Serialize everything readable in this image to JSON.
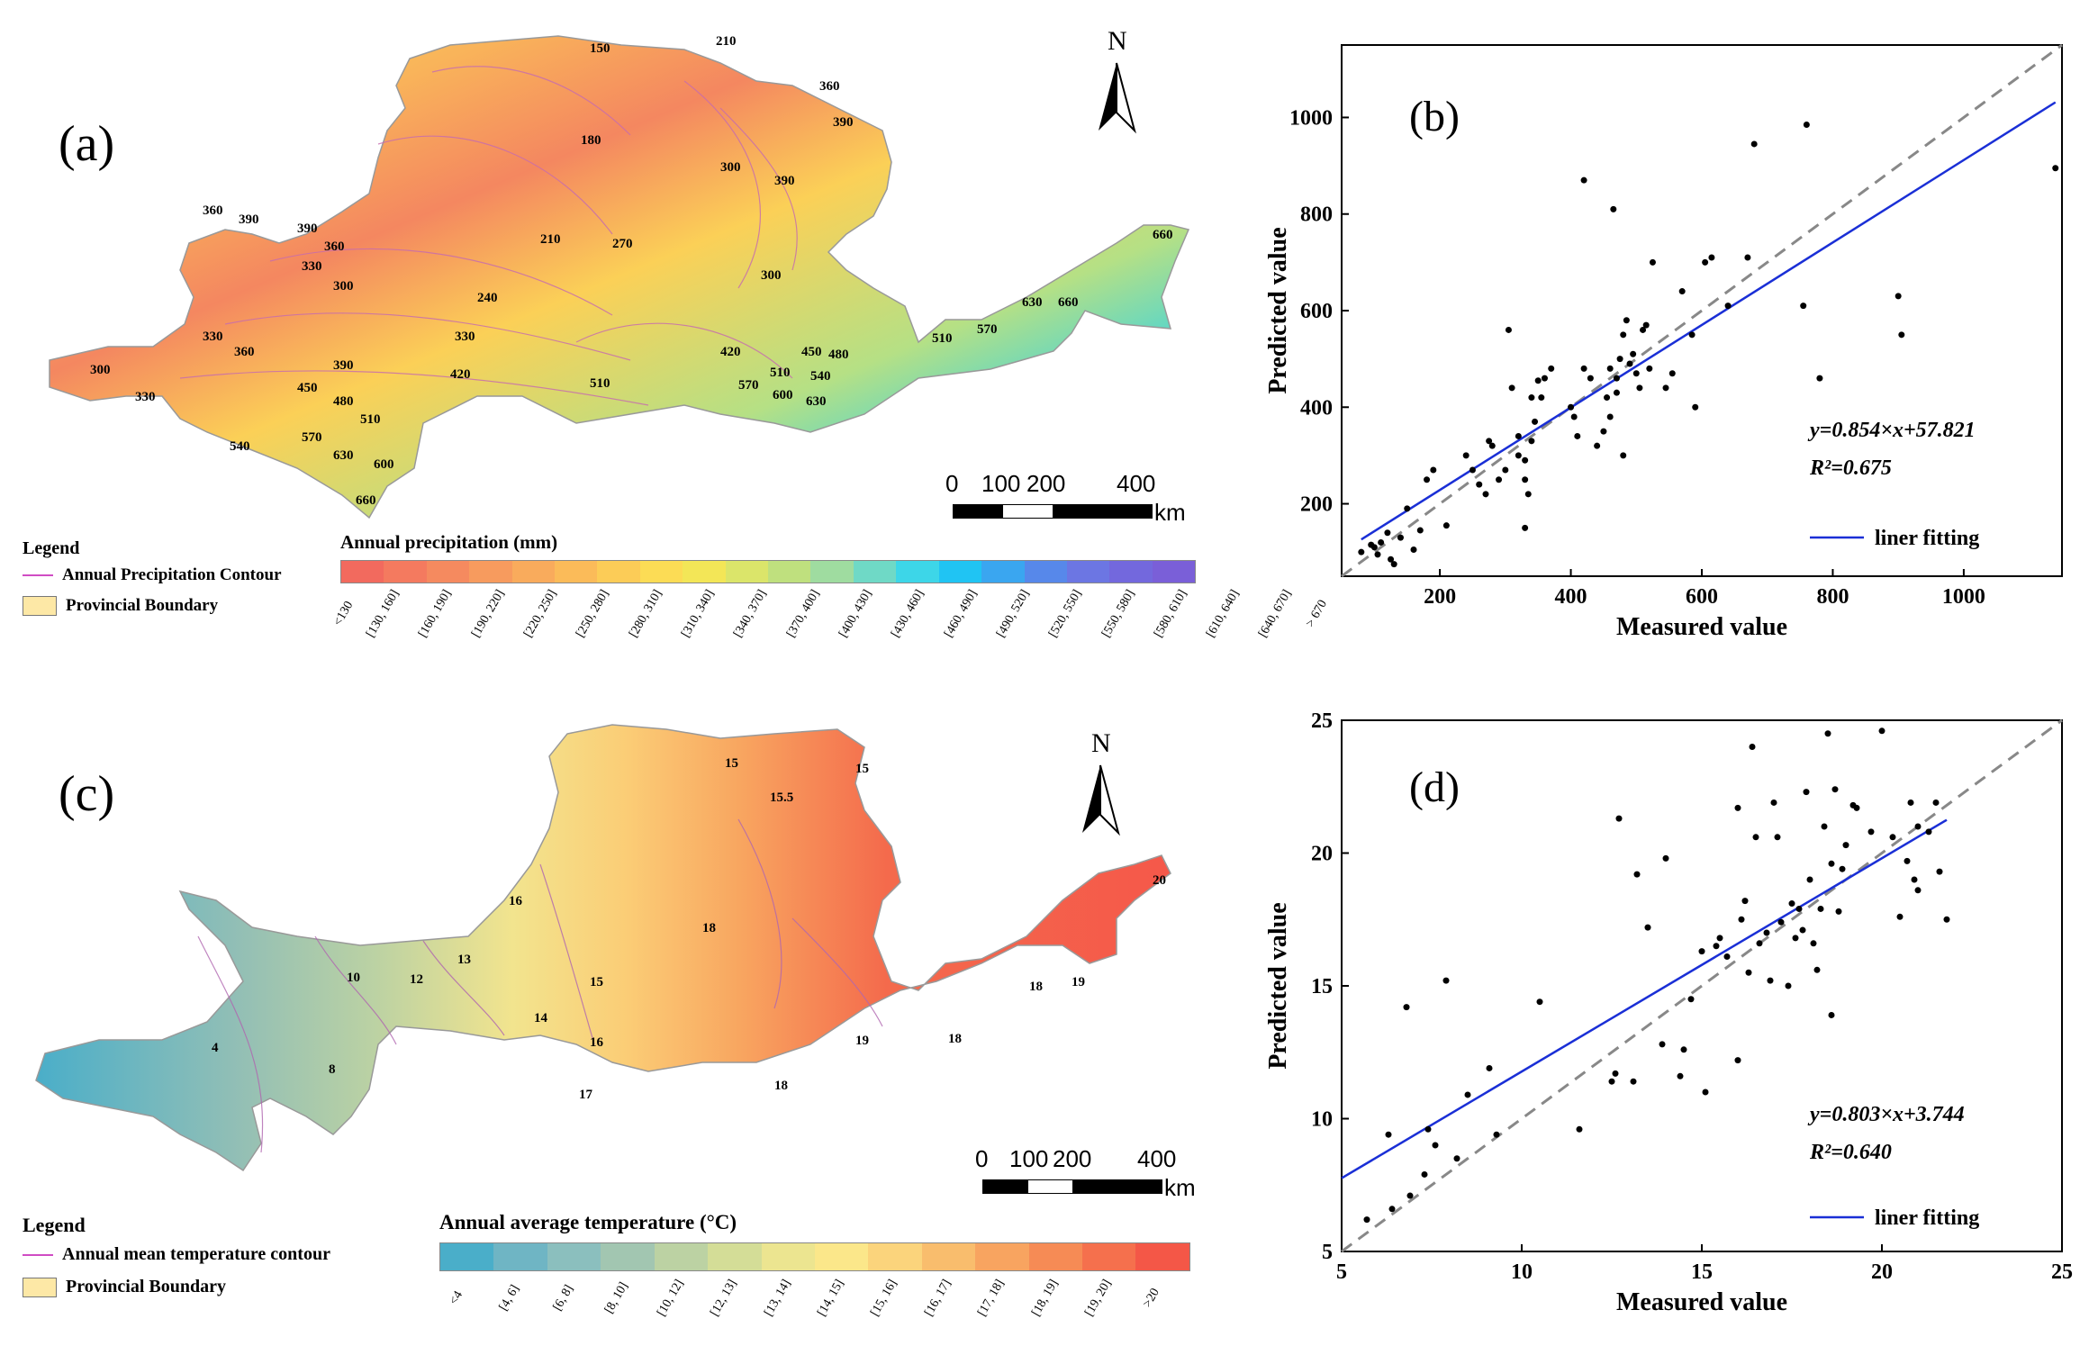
{
  "panel_a": {
    "label": "(a)",
    "north": "N",
    "legend_title": "Legend",
    "legend_line": "Annual Precipitation Contour",
    "legend_box": "Provincial Boundary",
    "colorbar_title": "Annual precipitation (mm)",
    "colorbar_ticks": [
      "<130",
      "[130, 160]",
      "[160, 190]",
      "[190, 220]",
      "[220, 250]",
      "[250, 280]",
      "[280, 310]",
      "[310, 340]",
      "[340, 370]",
      "[370, 400]",
      "[400, 430]",
      "[430, 460]",
      "[460, 490]",
      "[490, 520]",
      "[520, 550]",
      "[550, 580]",
      "[580, 610]",
      "[610, 640]",
      "[640, 670]",
      "> 670"
    ],
    "colorbar_colors": [
      "#f26a5e",
      "#f47a5f",
      "#f58a5f",
      "#f79b5e",
      "#f9ab5c",
      "#fbbb59",
      "#fccc57",
      "#fcdc55",
      "#f3e657",
      "#dbe56a",
      "#bfe07e",
      "#9fdca0",
      "#6fd9c6",
      "#3dd6e8",
      "#20c4f3",
      "#3aa6f0",
      "#5788ea",
      "#6c76e3",
      "#7368dd",
      "#7a5fd8"
    ],
    "scale_ticks": [
      "0",
      "100",
      "200",
      "400"
    ],
    "scale_unit": "km",
    "contour_labels": [
      "150",
      "210",
      "180",
      "360",
      "390",
      "300",
      "390",
      "360",
      "390",
      "390",
      "360",
      "330",
      "300",
      "210",
      "270",
      "240",
      "300",
      "660",
      "330",
      "360",
      "330",
      "390",
      "420",
      "510",
      "510",
      "570",
      "630",
      "660",
      "300",
      "330",
      "450",
      "480",
      "510",
      "420",
      "450",
      "480",
      "510",
      "540",
      "570",
      "600",
      "630",
      "540",
      "570",
      "630",
      "600",
      "660"
    ]
  },
  "panel_b": {
    "label": "(b)",
    "xlabel": "Measured value",
    "ylabel": "Predicted value",
    "equation": "y=0.854×x+57.821",
    "r2": "R²=0.675",
    "legend": "liner fitting"
  },
  "panel_c": {
    "label": "(c)",
    "north": "N",
    "legend_title": "Legend",
    "legend_line": "Annual mean temperature contour",
    "legend_box": "Provincial Boundary",
    "colorbar_title": "Annual average temperature (°C)",
    "colorbar_ticks": [
      "<4",
      "[4, 6]",
      "[6, 8]",
      "[8, 10]",
      "[10, 12]",
      "[12, 13]",
      "[13, 14]",
      "[14, 15]",
      "[15, 16]",
      "[16, 17]",
      "[17, 18]",
      "[18, 19]",
      "[19, 20]",
      ">20"
    ],
    "colorbar_colors": [
      "#4aaec9",
      "#6fb5c4",
      "#8bbfbe",
      "#a2c6b1",
      "#bcd2a3",
      "#d4dd97",
      "#ece590",
      "#fbe78a",
      "#fbd47c",
      "#f9bd6d",
      "#f8a460",
      "#f68b55",
      "#f5704d",
      "#f45747"
    ],
    "scale_ticks": [
      "0",
      "100",
      "200",
      "400"
    ],
    "scale_unit": "km",
    "contour_labels": [
      "15",
      "15.5",
      "15",
      "16",
      "13",
      "12",
      "10",
      "4",
      "8",
      "14",
      "15",
      "16",
      "17",
      "18",
      "19",
      "18",
      "18",
      "18",
      "19",
      "20"
    ]
  },
  "panel_d": {
    "label": "(d)",
    "xlabel": "Measured value",
    "ylabel": "Predicted value",
    "equation": "y=0.803×x+3.744",
    "r2": "R²=0.640",
    "legend": "liner fitting"
  },
  "chart_data": [
    {
      "type": "scatter",
      "panel": "(b)",
      "title": "",
      "xlabel": "Measured value",
      "ylabel": "Predicted value",
      "xlim": [
        50,
        1150
      ],
      "ylim": [
        50,
        1150
      ],
      "xticks": [
        200,
        400,
        600,
        800,
        1000
      ],
      "yticks": [
        200,
        400,
        600,
        800,
        1000
      ],
      "fit": {
        "slope": 0.854,
        "intercept": 57.821,
        "x_range": [
          80,
          1140
        ]
      },
      "reference_line": "y = x",
      "points": [
        [
          80,
          100
        ],
        [
          95,
          115
        ],
        [
          100,
          110
        ],
        [
          105,
          95
        ],
        [
          110,
          120
        ],
        [
          120,
          140
        ],
        [
          125,
          85
        ],
        [
          130,
          75
        ],
        [
          140,
          130
        ],
        [
          150,
          190
        ],
        [
          160,
          105
        ],
        [
          170,
          145
        ],
        [
          180,
          250
        ],
        [
          190,
          270
        ],
        [
          210,
          155
        ],
        [
          240,
          300
        ],
        [
          250,
          270
        ],
        [
          260,
          240
        ],
        [
          270,
          220
        ],
        [
          275,
          330
        ],
        [
          280,
          320
        ],
        [
          290,
          250
        ],
        [
          300,
          270
        ],
        [
          305,
          560
        ],
        [
          310,
          440
        ],
        [
          320,
          300
        ],
        [
          320,
          340
        ],
        [
          330,
          290
        ],
        [
          330,
          150
        ],
        [
          330,
          250
        ],
        [
          335,
          220
        ],
        [
          340,
          330
        ],
        [
          340,
          420
        ],
        [
          345,
          370
        ],
        [
          350,
          455
        ],
        [
          355,
          420
        ],
        [
          360,
          460
        ],
        [
          370,
          480
        ],
        [
          400,
          400
        ],
        [
          405,
          380
        ],
        [
          410,
          340
        ],
        [
          420,
          870
        ],
        [
          420,
          480
        ],
        [
          430,
          460
        ],
        [
          440,
          320
        ],
        [
          450,
          350
        ],
        [
          455,
          420
        ],
        [
          460,
          380
        ],
        [
          460,
          480
        ],
        [
          465,
          810
        ],
        [
          470,
          460
        ],
        [
          470,
          430
        ],
        [
          475,
          500
        ],
        [
          480,
          300
        ],
        [
          480,
          550
        ],
        [
          485,
          580
        ],
        [
          490,
          490
        ],
        [
          495,
          510
        ],
        [
          500,
          470
        ],
        [
          505,
          440
        ],
        [
          510,
          560
        ],
        [
          515,
          570
        ],
        [
          520,
          480
        ],
        [
          525,
          700
        ],
        [
          545,
          440
        ],
        [
          555,
          470
        ],
        [
          570,
          640
        ],
        [
          585,
          550
        ],
        [
          590,
          400
        ],
        [
          605,
          700
        ],
        [
          615,
          710
        ],
        [
          640,
          610
        ],
        [
          670,
          710
        ],
        [
          680,
          945
        ],
        [
          755,
          610
        ],
        [
          760,
          985
        ],
        [
          780,
          460
        ],
        [
          900,
          630
        ],
        [
          905,
          550
        ],
        [
          1140,
          895
        ]
      ]
    },
    {
      "type": "scatter",
      "panel": "(d)",
      "title": "",
      "xlabel": "Measured value",
      "ylabel": "Predicted value",
      "xlim": [
        5,
        25
      ],
      "ylim": [
        5,
        25
      ],
      "xticks": [
        5,
        10,
        15,
        20,
        25
      ],
      "yticks": [
        5,
        10,
        15,
        20,
        25
      ],
      "fit": {
        "slope": 0.803,
        "intercept": 3.744,
        "x_range": [
          5,
          21.8
        ]
      },
      "reference_line": "y = x",
      "points": [
        [
          5.7,
          6.2
        ],
        [
          6.3,
          9.4
        ],
        [
          6.4,
          6.6
        ],
        [
          6.8,
          14.2
        ],
        [
          6.9,
          7.1
        ],
        [
          7.3,
          7.9
        ],
        [
          7.4,
          9.6
        ],
        [
          7.6,
          9.0
        ],
        [
          7.9,
          15.2
        ],
        [
          8.2,
          8.5
        ],
        [
          8.5,
          10.9
        ],
        [
          9.1,
          11.9
        ],
        [
          9.3,
          9.4
        ],
        [
          10.5,
          14.4
        ],
        [
          11.6,
          9.6
        ],
        [
          12.5,
          11.4
        ],
        [
          12.6,
          11.7
        ],
        [
          12.7,
          21.3
        ],
        [
          13.1,
          11.4
        ],
        [
          13.2,
          19.2
        ],
        [
          13.5,
          17.2
        ],
        [
          13.9,
          12.8
        ],
        [
          14.0,
          19.8
        ],
        [
          14.4,
          11.6
        ],
        [
          14.5,
          12.6
        ],
        [
          14.7,
          14.5
        ],
        [
          15.0,
          16.3
        ],
        [
          15.1,
          11.0
        ],
        [
          15.4,
          16.5
        ],
        [
          15.5,
          16.8
        ],
        [
          15.7,
          16.1
        ],
        [
          16.0,
          21.7
        ],
        [
          16.0,
          12.2
        ],
        [
          16.1,
          17.5
        ],
        [
          16.2,
          18.2
        ],
        [
          16.3,
          15.5
        ],
        [
          16.4,
          24.0
        ],
        [
          16.5,
          20.6
        ],
        [
          16.6,
          16.6
        ],
        [
          16.8,
          17.0
        ],
        [
          16.9,
          15.2
        ],
        [
          17.0,
          21.9
        ],
        [
          17.1,
          20.6
        ],
        [
          17.2,
          17.4
        ],
        [
          17.4,
          15.0
        ],
        [
          17.5,
          18.1
        ],
        [
          17.6,
          16.8
        ],
        [
          17.7,
          17.9
        ],
        [
          17.8,
          17.1
        ],
        [
          17.9,
          22.3
        ],
        [
          18.0,
          19.0
        ],
        [
          18.1,
          16.6
        ],
        [
          18.2,
          15.6
        ],
        [
          18.3,
          17.9
        ],
        [
          18.4,
          21.0
        ],
        [
          18.5,
          24.5
        ],
        [
          18.6,
          19.6
        ],
        [
          18.7,
          22.4
        ],
        [
          18.8,
          17.8
        ],
        [
          18.9,
          19.4
        ],
        [
          19.0,
          20.3
        ],
        [
          19.2,
          21.8
        ],
        [
          19.3,
          21.7
        ],
        [
          19.7,
          20.8
        ],
        [
          20.0,
          24.6
        ],
        [
          20.3,
          20.6
        ],
        [
          20.5,
          17.6
        ],
        [
          20.7,
          19.7
        ],
        [
          20.8,
          21.9
        ],
        [
          20.9,
          19.0
        ],
        [
          21.0,
          18.6
        ],
        [
          21.3,
          20.8
        ],
        [
          21.5,
          21.9
        ],
        [
          21.6,
          19.3
        ],
        [
          21.8,
          17.5
        ],
        [
          21.0,
          21.0
        ],
        [
          18.6,
          13.9
        ]
      ]
    }
  ]
}
